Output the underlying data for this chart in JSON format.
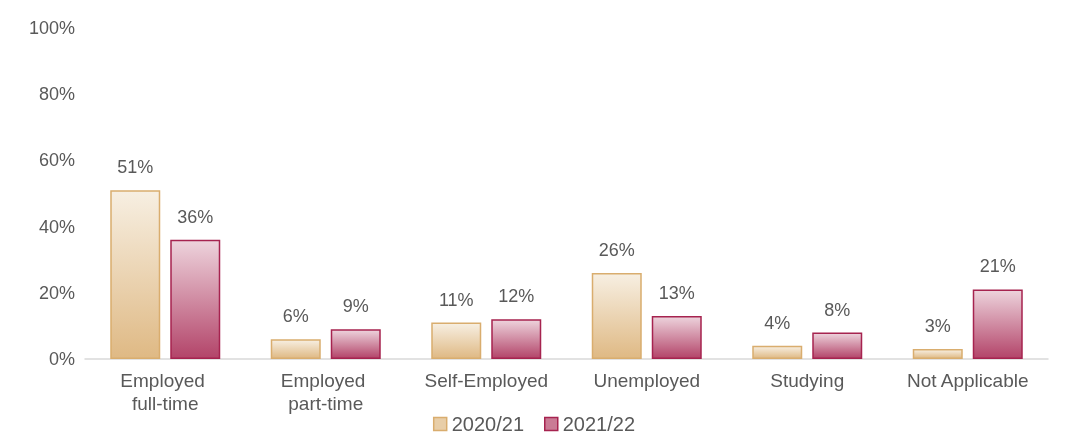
{
  "chart_data": {
    "type": "bar",
    "categories": [
      "Employed full-time",
      "Employed part-time",
      "Self-Employed",
      "Unemployed",
      "Studying",
      "Not Applicable"
    ],
    "series": [
      {
        "name": "2020/21",
        "color": "#d9ad6e",
        "values": [
          51,
          6,
          11,
          26,
          4,
          3
        ],
        "value_labels": [
          "51%",
          "6%",
          "11%",
          "26%",
          "4%",
          "3%"
        ]
      },
      {
        "name": "2021/22",
        "color": "#a6234f",
        "values": [
          36,
          9,
          12,
          13,
          8,
          21
        ],
        "value_labels": [
          "36%",
          "9%",
          "12%",
          "13%",
          "8%",
          "21%"
        ]
      }
    ],
    "ylim": [
      0,
      100
    ],
    "yticks": [
      {
        "value": 0,
        "label": "0%"
      },
      {
        "value": 20,
        "label": "20%"
      },
      {
        "value": 40,
        "label": "40%"
      },
      {
        "value": 60,
        "label": "60%"
      },
      {
        "value": 80,
        "label": "80%"
      },
      {
        "value": 100,
        "label": "100%"
      }
    ],
    "grid": false,
    "legend": "bottom"
  }
}
